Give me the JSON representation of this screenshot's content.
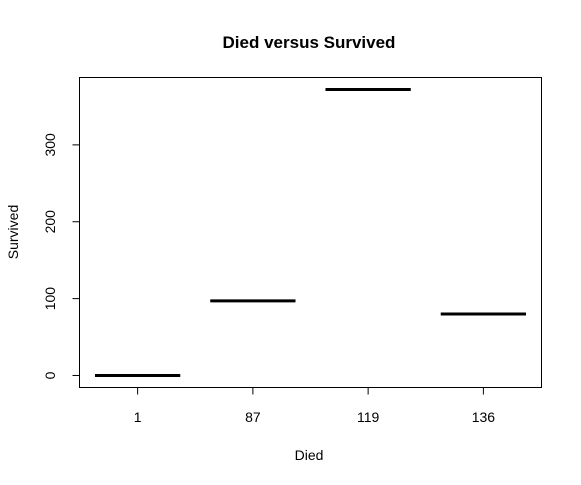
{
  "chart_data": {
    "type": "bar",
    "title": "Died versus Survived",
    "xlabel": "Died",
    "ylabel": "Survived",
    "categories": [
      "1",
      "87",
      "119",
      "136"
    ],
    "values": [
      0,
      97,
      372,
      80
    ],
    "ylim": [
      -15,
      387
    ],
    "y_ticks": [
      0,
      100,
      200,
      300
    ],
    "y_tick_labels": [
      "0",
      "100",
      "200",
      "300"
    ],
    "grid": false,
    "legend": "none",
    "line_color": "#000000"
  }
}
